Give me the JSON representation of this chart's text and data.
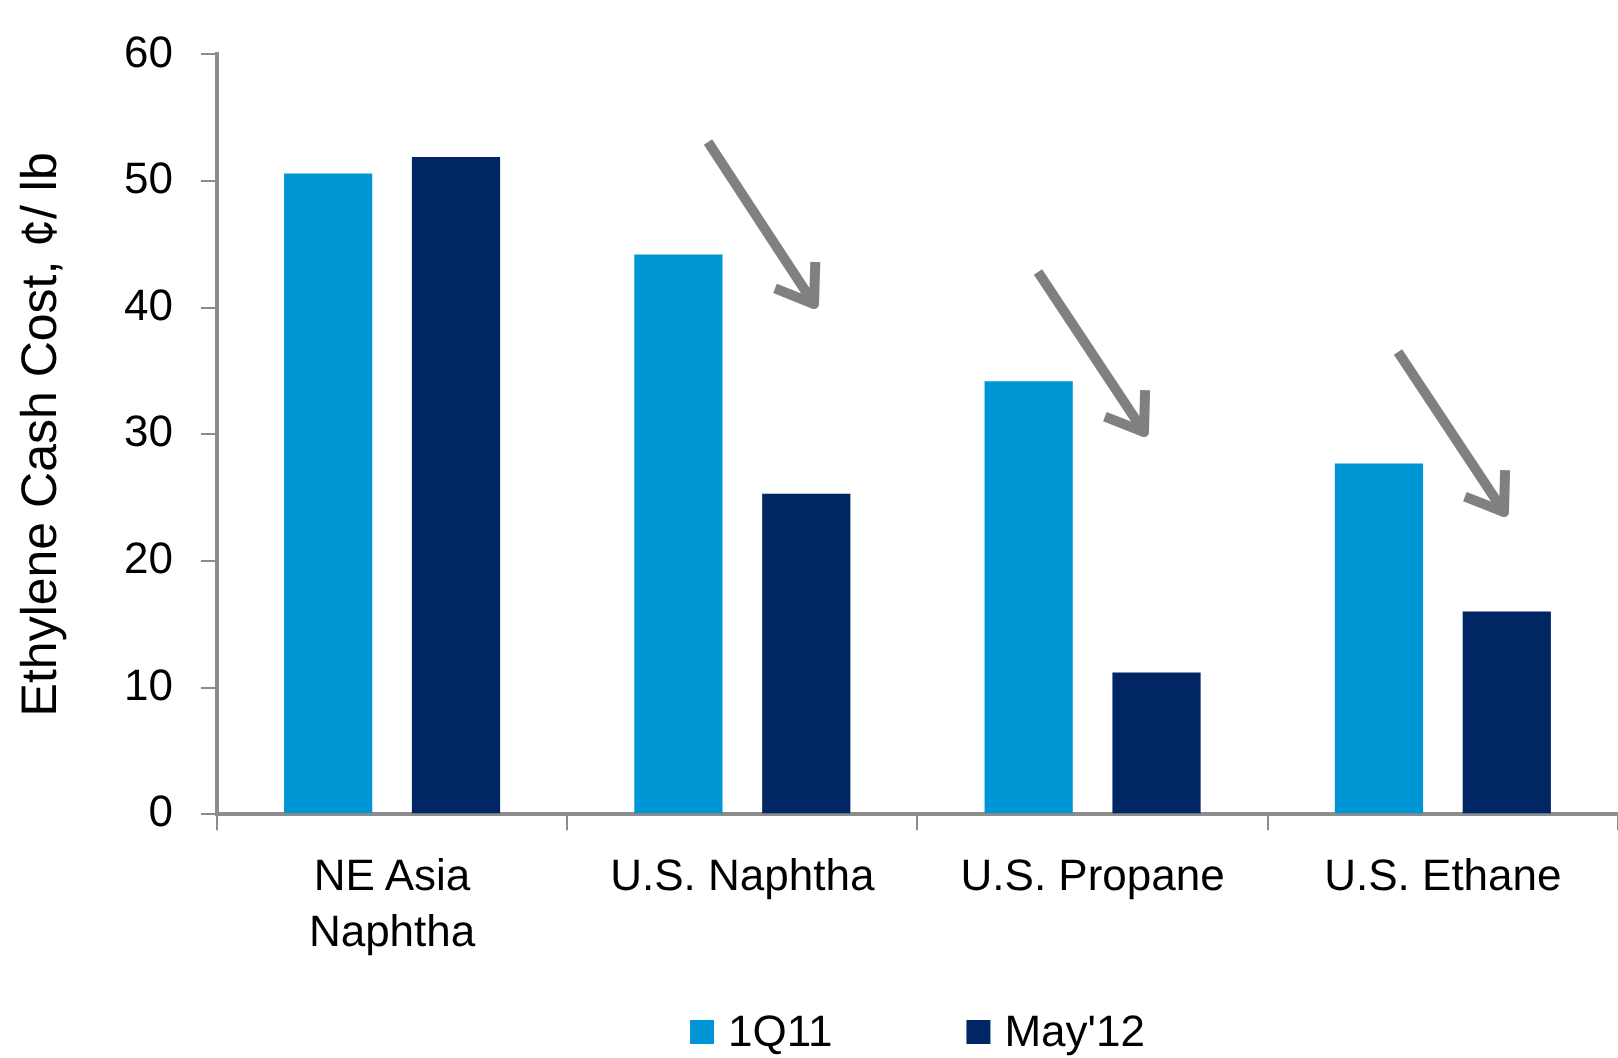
{
  "chart_data": {
    "type": "bar",
    "ylabel": "Ethylene Cash Cost, ¢/ lb",
    "categories": [
      "NE Asia Naphtha",
      "U.S. Naphtha",
      "U.S. Propane",
      "U.S. Ethane"
    ],
    "series": [
      {
        "name": "1Q11",
        "color": "#0096d6",
        "values": [
          50.6,
          44.2,
          34.2,
          27.7
        ]
      },
      {
        "name": "May'12",
        "color": "#002663",
        "values": [
          51.9,
          25.3,
          11.2,
          16.0
        ]
      }
    ],
    "ylim": [
      0,
      60
    ],
    "yticks": [
      0,
      10,
      20,
      30,
      40,
      50,
      60
    ],
    "grid": false,
    "legend": "bottom"
  }
}
